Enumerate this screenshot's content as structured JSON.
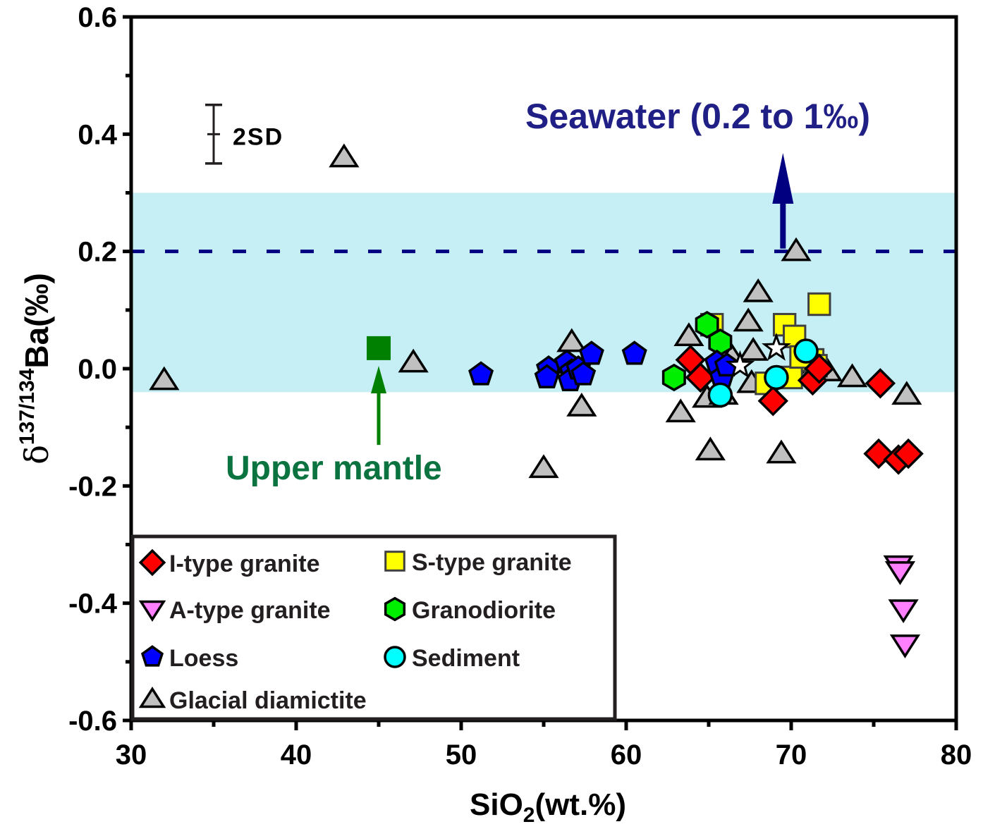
{
  "chart_data": {
    "type": "scatter",
    "title": "",
    "xlabel": "SiO2(wt.%)",
    "xlabel_parts": {
      "main": "SiO",
      "sub": "2",
      "rest": "(wt.%)"
    },
    "ylabel_parts": {
      "delta": "δ",
      "sup": "137/134",
      "rest": "Ba(‰)"
    },
    "xlim": [
      30,
      80
    ],
    "ylim": [
      -0.6,
      0.6
    ],
    "x_ticks": [
      30,
      40,
      50,
      60,
      70,
      80
    ],
    "x_tick_labels": [
      "30",
      "40",
      "50",
      "60",
      "70",
      "80"
    ],
    "y_ticks": [
      -0.6,
      -0.4,
      -0.2,
      0.0,
      0.2,
      0.4,
      0.6
    ],
    "y_tick_labels": [
      "-0.6",
      "-0.4",
      "-0.2",
      "0.0",
      "0.2",
      "0.4",
      "0.6"
    ],
    "grid": false,
    "legend_position": "bottom-left",
    "shaded_band": {
      "y_from": -0.04,
      "y_to": 0.3,
      "color": "#c5eff5"
    },
    "reference_line": {
      "y": 0.2,
      "style": "dashed",
      "color": "#000080"
    },
    "error_bar": {
      "label": "2SD",
      "x": 35,
      "y": 0.4,
      "half_range": 0.05
    },
    "annotations": {
      "seawater": {
        "text": "Seawater (0.2 to 1‰)",
        "color": "#1f1f85",
        "arrow_x": 69.5,
        "arrow_from_y": 0.2,
        "arrow_to_y": 0.38
      },
      "mantle": {
        "text": "Upper mantle",
        "color": "#0b7340",
        "point": {
          "x": 45.0,
          "y": 0.035
        },
        "arrow_from_y": -0.13,
        "arrow_to_y": 0.0
      }
    },
    "series": [
      {
        "name": "Glacial diamictite",
        "marker": "triangle-up",
        "fill": "#c0c0c0",
        "stroke": "#000000",
        "points": [
          [
            32.0,
            -0.02
          ],
          [
            42.9,
            0.36
          ],
          [
            47.1,
            0.01
          ],
          [
            55.0,
            -0.17
          ],
          [
            56.7,
            0.045
          ],
          [
            57.3,
            -0.065
          ],
          [
            63.3,
            -0.075
          ],
          [
            63.8,
            0.055
          ],
          [
            65.1,
            -0.14
          ],
          [
            64.9,
            -0.05
          ],
          [
            65.9,
            -0.045
          ],
          [
            66.4,
            0.02
          ],
          [
            67.4,
            0.08
          ],
          [
            68.0,
            0.13
          ],
          [
            67.7,
            0.03
          ],
          [
            67.6,
            -0.025
          ],
          [
            70.3,
            0.2
          ],
          [
            69.4,
            -0.145
          ],
          [
            71.3,
            0.0
          ],
          [
            72.2,
            -0.005
          ],
          [
            73.7,
            -0.015
          ],
          [
            77.0,
            -0.045
          ]
        ]
      },
      {
        "name": "S-type granite",
        "marker": "square",
        "fill": "#ffff00",
        "stroke": "#404040",
        "points": [
          [
            65.2,
            0.075
          ],
          [
            69.6,
            0.075
          ],
          [
            70.2,
            0.055
          ],
          [
            71.7,
            0.11
          ],
          [
            68.5,
            -0.025
          ],
          [
            70.0,
            -0.015
          ],
          [
            71.3,
            0.015
          ],
          [
            71.5,
            0.005
          ],
          [
            70.6,
            0.02
          ]
        ]
      },
      {
        "name": "Granodiorite",
        "marker": "hexagon",
        "fill": "#00ee00",
        "stroke": "#000000",
        "points": [
          [
            64.9,
            0.075
          ],
          [
            65.7,
            0.045
          ],
          [
            62.9,
            -0.015
          ]
        ]
      },
      {
        "name": "I-type granite",
        "marker": "diamond",
        "fill": "#ff0000",
        "stroke": "#000000",
        "points": [
          [
            63.9,
            0.015
          ],
          [
            64.5,
            -0.015
          ],
          [
            68.9,
            -0.055
          ],
          [
            71.3,
            -0.02
          ],
          [
            71.7,
            0.0
          ],
          [
            75.4,
            -0.025
          ],
          [
            75.3,
            -0.145
          ],
          [
            76.5,
            -0.155
          ],
          [
            77.1,
            -0.145
          ]
        ]
      },
      {
        "name": "Loess",
        "marker": "pentagon",
        "fill": "#0000ff",
        "stroke": "#000000",
        "points": [
          [
            51.2,
            -0.01
          ],
          [
            55.3,
            0.0
          ],
          [
            55.2,
            -0.015
          ],
          [
            56.4,
            0.01
          ],
          [
            56.7,
            -0.005
          ],
          [
            56.6,
            -0.02
          ],
          [
            57.1,
            0.0
          ],
          [
            57.4,
            -0.01
          ],
          [
            57.9,
            0.025
          ],
          [
            60.5,
            0.025
          ],
          [
            65.5,
            0.01
          ],
          [
            65.8,
            -0.015
          ],
          [
            66.1,
            0.005
          ]
        ]
      },
      {
        "name": "Sediment",
        "marker": "circle",
        "fill": "#00ffff",
        "stroke": "#000000",
        "points": [
          [
            65.7,
            -0.045
          ],
          [
            69.1,
            -0.015
          ],
          [
            70.9,
            0.03
          ]
        ]
      },
      {
        "name": "Reference (star)",
        "marker": "star",
        "fill": "#ffffff",
        "stroke": "#000000",
        "in_legend": false,
        "points": [
          [
            66.9,
            0.005
          ],
          [
            69.1,
            0.035
          ]
        ]
      },
      {
        "name": "A-type granite",
        "marker": "triangle-down",
        "fill": "#ff80ff",
        "stroke": "#000000",
        "points": [
          [
            76.5,
            -0.335
          ],
          [
            76.6,
            -0.345
          ],
          [
            76.8,
            -0.41
          ],
          [
            76.9,
            -0.47
          ]
        ]
      }
    ],
    "legend": [
      {
        "label": "I-type granite",
        "marker": "diamond",
        "fill": "#ff0000"
      },
      {
        "label": "S-type granite",
        "marker": "square",
        "fill": "#ffff00"
      },
      {
        "label": "A-type granite",
        "marker": "triangle-down",
        "fill": "#ff80ff"
      },
      {
        "label": "Granodiorite",
        "marker": "hexagon",
        "fill": "#00ee00"
      },
      {
        "label": "Loess",
        "marker": "pentagon",
        "fill": "#0000ff"
      },
      {
        "label": "Sediment",
        "marker": "circle",
        "fill": "#00ffff"
      },
      {
        "label": "Glacial diamictite",
        "marker": "triangle-up",
        "fill": "#c0c0c0"
      }
    ]
  }
}
